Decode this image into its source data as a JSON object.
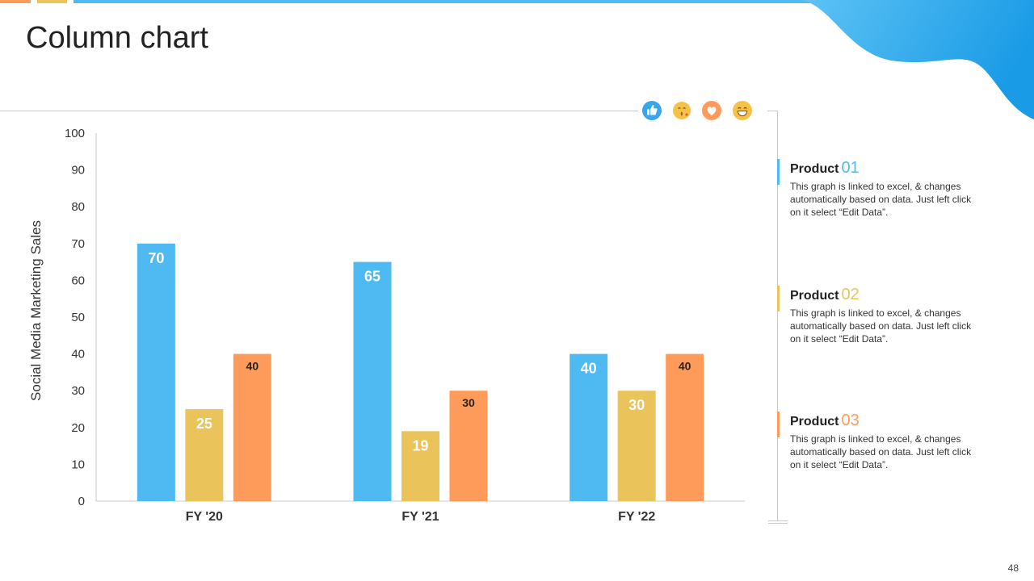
{
  "slide": {
    "title": "Column chart",
    "page_number": "48"
  },
  "colors": {
    "blue": "#4FBAF1",
    "yellow": "#EBC35B",
    "orange": "#FF9B5A",
    "axis": "#c8c8c8",
    "wave_start": "#5ec3f5",
    "wave_end": "#1a9be6"
  },
  "reactions": [
    "thumbs-up-icon",
    "kiss-emoji-icon",
    "heart-icon",
    "grin-emoji-icon"
  ],
  "chart_data": {
    "type": "bar",
    "categories": [
      "FY '20",
      "FY '21",
      "FY '22"
    ],
    "series": [
      {
        "name": "Product 01",
        "values": [
          70,
          65,
          40
        ],
        "color": "#4FBAF1"
      },
      {
        "name": "Product 02",
        "values": [
          25,
          19,
          30
        ],
        "color": "#EBC35B"
      },
      {
        "name": "Product 03",
        "values": [
          40,
          30,
          40
        ],
        "color": "#FF9B5A"
      }
    ],
    "ylabel": "Social Media Marketing Sales",
    "ylim": [
      0,
      100
    ],
    "yticks": [
      0,
      10,
      20,
      30,
      40,
      50,
      60,
      70,
      80,
      90,
      100
    ],
    "grid": false,
    "legend_position": "right"
  },
  "legend": [
    {
      "label": "Product",
      "number": "01",
      "color": "#4FBAF1",
      "desc": "This graph is linked to excel, & changes automatically based on data. Just left click on it select “Edit Data”."
    },
    {
      "label": "Product",
      "number": "02",
      "color": "#EBC35B",
      "desc": "This graph is linked to excel, & changes automatically based on data. Just left click on it select “Edit Data”."
    },
    {
      "label": "Product",
      "number": "03",
      "color": "#FF9B5A",
      "desc": "This graph is linked to excel, & changes automatically based on data. Just left click on it select “Edit Data”."
    }
  ]
}
